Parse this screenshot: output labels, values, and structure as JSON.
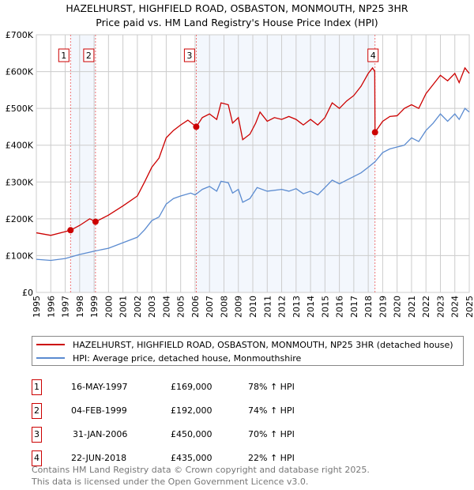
{
  "chart_data": {
    "type": "line",
    "title": "HAZELHURST, HIGHFIELD ROAD, OSBASTON, MONMOUTH, NP25 3HR",
    "subtitle": "Price paid vs. HM Land Registry's House Price Index (HPI)",
    "xlim": [
      1995,
      2025
    ],
    "ylim": [
      0,
      700000
    ],
    "y_ticks": [
      {
        "v": 0,
        "label": "£0"
      },
      {
        "v": 100000,
        "label": "£100K"
      },
      {
        "v": 200000,
        "label": "£200K"
      },
      {
        "v": 300000,
        "label": "£300K"
      },
      {
        "v": 400000,
        "label": "£400K"
      },
      {
        "v": 500000,
        "label": "£500K"
      },
      {
        "v": 600000,
        "label": "£600K"
      },
      {
        "v": 700000,
        "label": "£700K"
      }
    ],
    "x_ticks": [
      "1995",
      "1996",
      "1997",
      "1998",
      "1999",
      "2000",
      "2001",
      "2002",
      "2003",
      "2004",
      "2005",
      "2006",
      "2007",
      "2008",
      "2009",
      "2010",
      "2011",
      "2012",
      "2013",
      "2014",
      "2015",
      "2016",
      "2017",
      "2018",
      "2019",
      "2020",
      "2021",
      "2022",
      "2023",
      "2024",
      "2025"
    ],
    "grid": true,
    "series": [
      {
        "name": "HAZELHURST, HIGHFIELD ROAD, OSBASTON, MONMOUTH, NP25 3HR (detached house)",
        "color": "#cc0000",
        "x": [
          1995,
          1996,
          1997,
          1997.37,
          1998,
          1998.7,
          1999.1,
          2000,
          2001,
          2002,
          2002.5,
          2003,
          2003.5,
          2004,
          2004.5,
          2005,
          2005.5,
          2006.08,
          2006.5,
          2007,
          2007.5,
          2007.8,
          2008.3,
          2008.6,
          2009,
          2009.3,
          2009.8,
          2010.2,
          2010.5,
          2011,
          2011.5,
          2012,
          2012.5,
          2013,
          2013.5,
          2014,
          2014.5,
          2015,
          2015.5,
          2016,
          2016.5,
          2017,
          2017.5,
          2018,
          2018.3,
          2018.45,
          2018.47,
          2019,
          2019.5,
          2020,
          2020.5,
          2021,
          2021.5,
          2022,
          2022.5,
          2023,
          2023.5,
          2024,
          2024.3,
          2024.7,
          2025
        ],
        "y": [
          162000,
          155000,
          165000,
          169000,
          182000,
          200000,
          192000,
          210000,
          235000,
          262000,
          300000,
          340000,
          365000,
          420000,
          440000,
          455000,
          468000,
          450000,
          475000,
          485000,
          470000,
          515000,
          510000,
          460000,
          475000,
          415000,
          430000,
          460000,
          490000,
          465000,
          475000,
          470000,
          478000,
          470000,
          455000,
          470000,
          455000,
          475000,
          515000,
          500000,
          520000,
          535000,
          560000,
          595000,
          610000,
          600000,
          435000,
          465000,
          478000,
          480000,
          500000,
          510000,
          500000,
          540000,
          565000,
          590000,
          575000,
          595000,
          570000,
          610000,
          595000
        ]
      },
      {
        "name": "HPI: Average price, detached house, Monmouthshire",
        "color": "#5b8bd0",
        "x": [
          1995,
          1996,
          1997,
          1998,
          1999,
          2000,
          2001,
          2002,
          2002.5,
          2003,
          2003.5,
          2004,
          2004.5,
          2005,
          2005.7,
          2006,
          2006.5,
          2007,
          2007.5,
          2007.8,
          2008.3,
          2008.6,
          2009,
          2009.3,
          2009.8,
          2010.3,
          2011,
          2012,
          2012.5,
          2013,
          2013.5,
          2014,
          2014.5,
          2015,
          2015.5,
          2016,
          2016.5,
          2017,
          2017.5,
          2018,
          2018.47,
          2019,
          2019.5,
          2020,
          2020.5,
          2021,
          2021.5,
          2022,
          2022.5,
          2023,
          2023.5,
          2024,
          2024.3,
          2024.7,
          2025
        ],
        "y": [
          90000,
          87000,
          92000,
          103000,
          112000,
          120000,
          135000,
          150000,
          170000,
          195000,
          205000,
          240000,
          255000,
          262000,
          270000,
          265000,
          280000,
          288000,
          275000,
          302000,
          298000,
          270000,
          280000,
          245000,
          255000,
          285000,
          275000,
          280000,
          275000,
          282000,
          268000,
          275000,
          265000,
          285000,
          305000,
          295000,
          305000,
          315000,
          325000,
          340000,
          355000,
          380000,
          390000,
          395000,
          400000,
          420000,
          410000,
          440000,
          460000,
          485000,
          465000,
          485000,
          470000,
          500000,
          490000
        ]
      }
    ],
    "sales": [
      {
        "n": "1",
        "date": "16-MAY-1997",
        "x": 1997.37,
        "price": 169000,
        "price_label": "£169,000",
        "hpi": "78% ↑ HPI"
      },
      {
        "n": "2",
        "date": "04-FEB-1999",
        "x": 1999.1,
        "price": 192000,
        "price_label": "£192,000",
        "hpi": "74% ↑ HPI"
      },
      {
        "n": "3",
        "date": "31-JAN-2006",
        "x": 2006.08,
        "price": 450000,
        "price_label": "£450,000",
        "hpi": "70% ↑ HPI"
      },
      {
        "n": "4",
        "date": "22-JUN-2018",
        "x": 2018.47,
        "price": 435000,
        "price_label": "£435,000",
        "hpi": "22% ↑ HPI"
      }
    ]
  },
  "footer": [
    "Contains HM Land Registry data © Crown copyright and database right 2025.",
    "This data is licensed under the Open Government Licence v3.0."
  ]
}
